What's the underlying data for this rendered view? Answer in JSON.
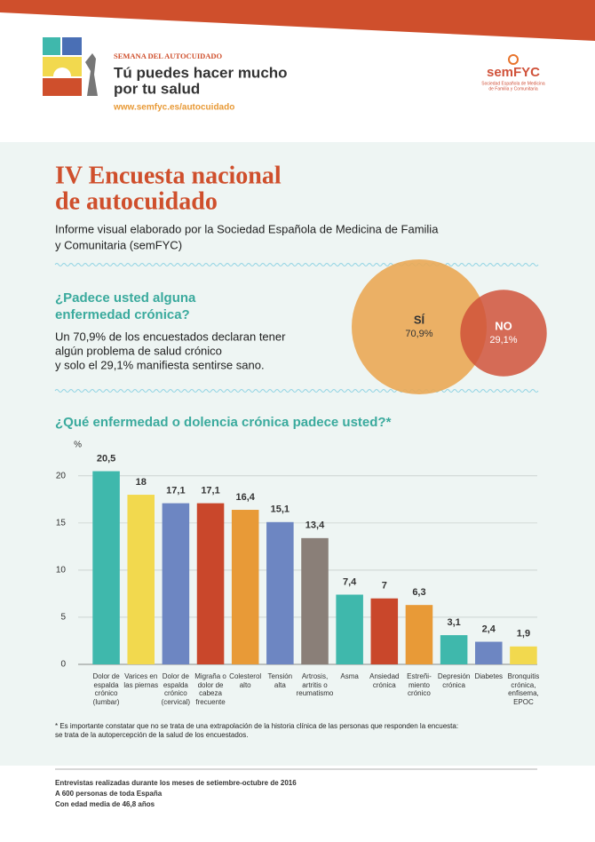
{
  "header": {
    "kicker": "SEMANA DEL AUTOCUIDADO",
    "slogan": [
      "Tú puedes hacer mucho",
      "por tu salud"
    ],
    "url": "www.semfyc.es/autocuidado",
    "org": "semFYC",
    "org_full": [
      "Sociedad Española de Medicina",
      "de Familia y Comunitaria"
    ]
  },
  "title": [
    "IV Encuesta nacional",
    "de autocuidado"
  ],
  "subtitle": [
    "Informe visual elaborado por la Sociedad Española de Medicina de Familia",
    "y Comunitaria (semFYC)"
  ],
  "question": {
    "heading": [
      "¿Padece usted alguna",
      "enfermedad crónica?"
    ],
    "text": [
      "Un 70,9% de los encuestados declaran tener",
      "algún problema de salud crónico",
      "y solo el 29,1% manifiesta sentirse sano."
    ]
  },
  "chart_data": [
    {
      "type": "bubble",
      "categories": [
        "SÍ",
        "NO"
      ],
      "values": [
        70.9,
        29.1
      ],
      "value_labels": [
        "70,9%",
        "29,1%"
      ],
      "colors": [
        "#eaa955",
        "#d0523a"
      ]
    },
    {
      "type": "bar",
      "title": "¿Qué enfermedad o dolencia crónica padece usted?*",
      "y_label": "%",
      "categories": [
        "Dolor de\nespalda\ncrónico\n(lumbar)",
        "Varices en\nlas piernas",
        "Dolor de\nespalda\ncrónico\n(cervical)",
        "Migraña o\ndolor de\ncabeza\nfrecuente",
        "Colesterol\nalto",
        "Tensión\nalta",
        "Artrosis,\nartritis o\nreumatismo",
        "Asma",
        "Ansiedad\ncrónica",
        "Estreñi-\nmiento\ncrónico",
        "Depresión\ncrónica",
        "Diabetes",
        "Bronquitis\ncrónica,\nenfisema,\nEPOC"
      ],
      "values": [
        20.5,
        18,
        17.1,
        17.1,
        16.4,
        15.1,
        13.4,
        7.4,
        7,
        6.3,
        3.1,
        2.4,
        1.9
      ],
      "value_labels": [
        "20,5",
        "18",
        "17,1",
        "17,1",
        "16,4",
        "15,1",
        "13,4",
        "7,4",
        "7",
        "6,3",
        "3,1",
        "2,4",
        "1,9"
      ],
      "colors": [
        "#3fb8ac",
        "#f2d94e",
        "#6d86c2",
        "#c9472b",
        "#e89a37",
        "#6d86c2",
        "#8a7f78",
        "#3fb8ac",
        "#c9472b",
        "#e89a37",
        "#3fb8ac",
        "#6d86c2",
        "#f2d94e"
      ],
      "ylim": [
        0,
        23
      ],
      "yticks": [
        0,
        5,
        10,
        15,
        20
      ],
      "grid": true
    }
  ],
  "footnote": [
    "* Es importante constatar que no se trata de una extrapolación de la historia clínica de las personas que responden la encuesta:",
    "se trata de la autopercepción de la salud de los encuestados."
  ],
  "footer": [
    "Entrevistas realizadas durante los meses de setiembre-octubre de 2016",
    "A 600 personas de toda España",
    "Con edad media de 46,8 años"
  ]
}
